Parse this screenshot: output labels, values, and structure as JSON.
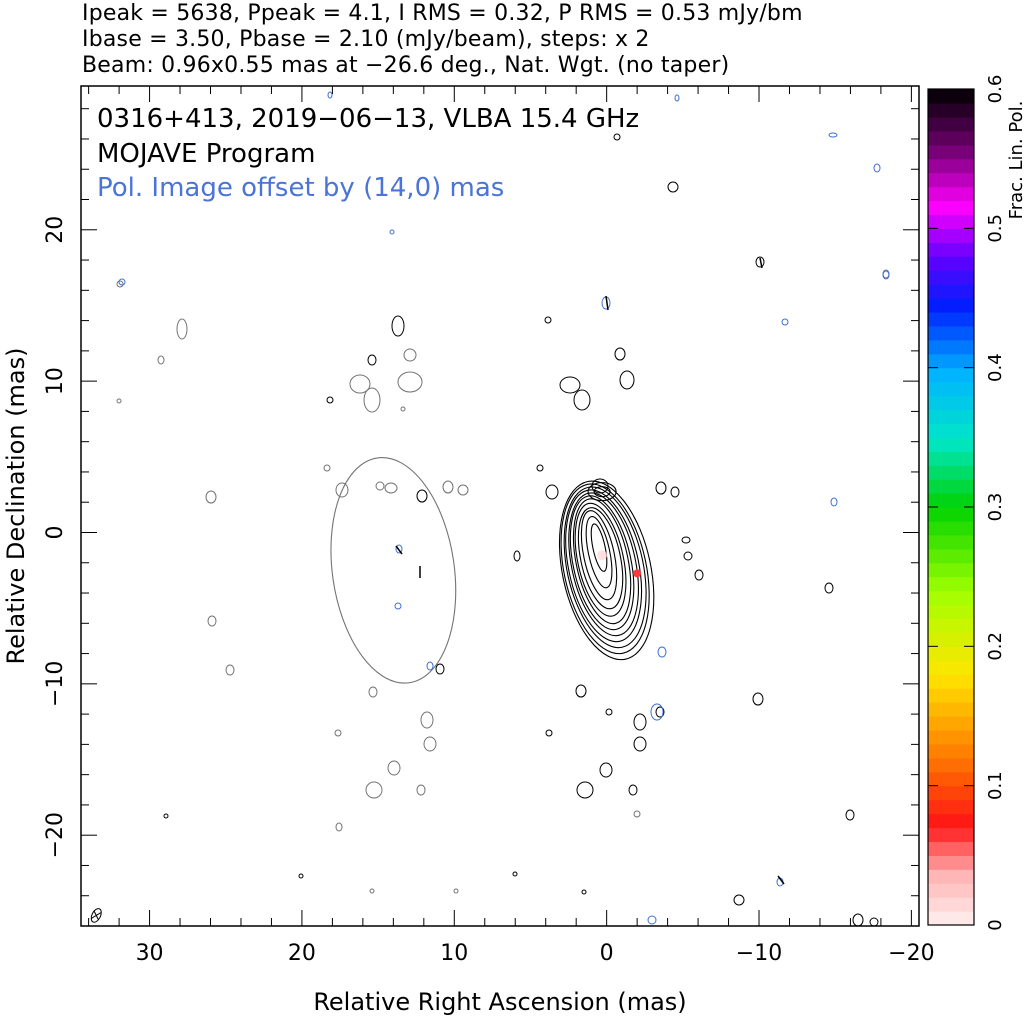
{
  "header": {
    "line1": "Ipeak = 5638, Ppeak = 4.1, I RMS = 0.32, P RMS = 0.53 mJy/bm",
    "line2": "Ibase = 3.50, Pbase = 2.10 (mJy/beam), steps: x 2",
    "line3": "Beam: 0.96x0.55 mas at −26.6 deg., Nat. Wgt. (no taper)"
  },
  "colors": {
    "contour_total": "#000000",
    "contour_pol": "#737373",
    "pol_vectors": "#3d6fd6",
    "accent_text": "#4a74d8",
    "frame": "#000000"
  },
  "chart_data": {
    "type": "contour",
    "title": "0316+413, 2019−06−13, VLBA 15.4 GHz",
    "subtitle": "MOJAVE Program",
    "annotation": "Pol. Image offset by (14,0) mas",
    "xlabel": "Relative Right Ascension (mas)",
    "ylabel": "Relative Declination (mas)",
    "xlim": [
      34.5,
      -20.5
    ],
    "ylim": [
      -26,
      29.5
    ],
    "xticks": [
      30,
      20,
      10,
      0,
      -10,
      -20
    ],
    "xtick_labels": [
      "30",
      "20",
      "10",
      "0",
      "−10",
      "−20"
    ],
    "yticks": [
      20,
      10,
      0,
      -10,
      -20
    ],
    "ytick_labels": [
      "20",
      "10",
      "0",
      "−10",
      "−20"
    ],
    "colorbar": {
      "label": "Frac. Lin. Pol.",
      "range": [
        0,
        0.6
      ],
      "ticks": [
        0,
        0.1,
        0.2,
        0.3,
        0.4,
        0.5,
        0.6
      ],
      "tick_labels": [
        "0",
        "0.1",
        "0.2",
        "0.3",
        "0.4",
        "0.5",
        "0.6"
      ]
    },
    "stokes_i_peak_mjy_per_beam": 5638,
    "pol_peak_mjy_per_beam": 4.1,
    "i_rms": 0.32,
    "p_rms": 0.53,
    "i_base": 3.5,
    "p_base": 2.1,
    "contour_step_factor": 2,
    "beam": {
      "major_mas": 0.96,
      "minor_mas": 0.55,
      "pa_deg": -26.6
    },
    "pol_image_offset_mas": [
      14,
      0
    ],
    "core": {
      "ra": 0,
      "dec": 0
    },
    "total_intensity_contours": [
      {
        "ra": 0.0,
        "dec": -2.5,
        "a": 2.9,
        "b": 6.0
      },
      {
        "ra": 0.1,
        "dec": -2.4,
        "a": 2.7,
        "b": 5.7
      },
      {
        "ra": 0.1,
        "dec": -2.3,
        "a": 2.5,
        "b": 5.4
      },
      {
        "ra": 0.2,
        "dec": -2.2,
        "a": 2.3,
        "b": 5.1
      },
      {
        "ra": 0.2,
        "dec": -2.1,
        "a": 2.1,
        "b": 4.8
      },
      {
        "ra": 0.3,
        "dec": -2.0,
        "a": 1.9,
        "b": 4.5
      },
      {
        "ra": 0.3,
        "dec": -1.9,
        "a": 1.7,
        "b": 4.2
      },
      {
        "ra": 0.4,
        "dec": -1.8,
        "a": 1.5,
        "b": 3.8
      },
      {
        "ra": 0.4,
        "dec": -1.7,
        "a": 1.3,
        "b": 3.4
      },
      {
        "ra": 0.5,
        "dec": -1.5,
        "a": 1.0,
        "b": 3.0
      },
      {
        "ra": 0.5,
        "dec": -1.3,
        "a": 0.7,
        "b": 2.4
      },
      {
        "ra": 0.5,
        "dec": -1.0,
        "a": 0.4,
        "b": 1.6
      }
    ],
    "polarized_contour_main": {
      "ra": 14.0,
      "dec": -2.5,
      "a": 4.0,
      "b": 7.5
    }
  }
}
